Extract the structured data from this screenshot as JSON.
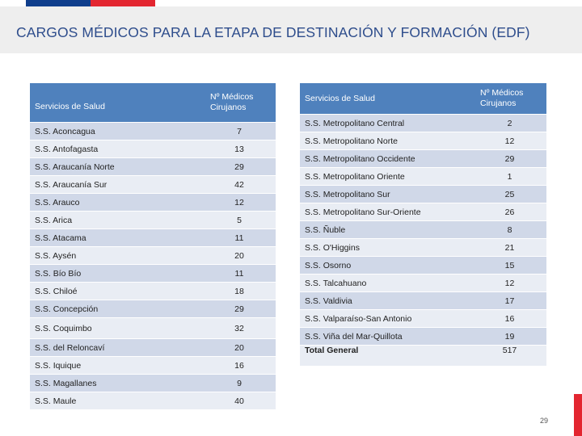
{
  "title": "CARGOS MÉDICOS PARA LA ETAPA DE DESTINACIÓN Y FORMACIÓN (EDF)",
  "page_number": "29",
  "colors": {
    "header_blue": "#4f81bd",
    "row_dark": "#d0d8e8",
    "row_light": "#e9edf4",
    "title": "#2e4d8c",
    "flag_blue": "#0f3e8c",
    "flag_red": "#e32630"
  },
  "left_table": {
    "headers": [
      "Servicios de Salud",
      "Nº Médicos Cirujanos"
    ],
    "rows": [
      [
        "S.S. Aconcagua",
        "7"
      ],
      [
        "S.S. Antofagasta",
        "13"
      ],
      [
        "S.S. Araucanía Norte",
        "29"
      ],
      [
        "S.S. Araucanía Sur",
        "42"
      ],
      [
        "S.S. Arauco",
        "12"
      ],
      [
        "S.S. Arica",
        "5"
      ],
      [
        "S.S. Atacama",
        "11"
      ],
      [
        "S.S. Aysén",
        "20"
      ],
      [
        "S.S. Bío Bío",
        "11"
      ],
      [
        "S.S. Chiloé",
        "18"
      ],
      [
        "S.S. Concepción",
        "29"
      ],
      [
        "S.S. Coquimbo",
        "32"
      ],
      [
        "S.S. del Reloncaví",
        "20"
      ],
      [
        "S.S. Iquique",
        "16"
      ],
      [
        "S.S. Magallanes",
        "9"
      ],
      [
        "S.S. Maule",
        "40"
      ]
    ]
  },
  "right_table": {
    "headers": [
      "Servicios de Salud",
      "Nº Médicos Cirujanos"
    ],
    "rows": [
      [
        "S.S. Metropolitano Central",
        "2"
      ],
      [
        "S.S. Metropolitano Norte",
        "12"
      ],
      [
        "S.S. Metropolitano Occidente",
        "29"
      ],
      [
        "S.S. Metropolitano Oriente",
        "1"
      ],
      [
        "S.S. Metropolitano Sur",
        "25"
      ],
      [
        "S.S. Metropolitano Sur-Oriente",
        "26"
      ],
      [
        "S.S. Ñuble",
        "8"
      ],
      [
        "S.S. O'Higgins",
        "21"
      ],
      [
        "S.S. Osorno",
        "15"
      ],
      [
        "S.S. Talcahuano",
        "12"
      ],
      [
        "S.S. Valdivia",
        "17"
      ],
      [
        "S.S. Valparaíso-San Antonio",
        "16"
      ],
      [
        "S.S. Viña del Mar-Quillota",
        "19"
      ]
    ],
    "total": [
      "Total General",
      "517"
    ]
  }
}
